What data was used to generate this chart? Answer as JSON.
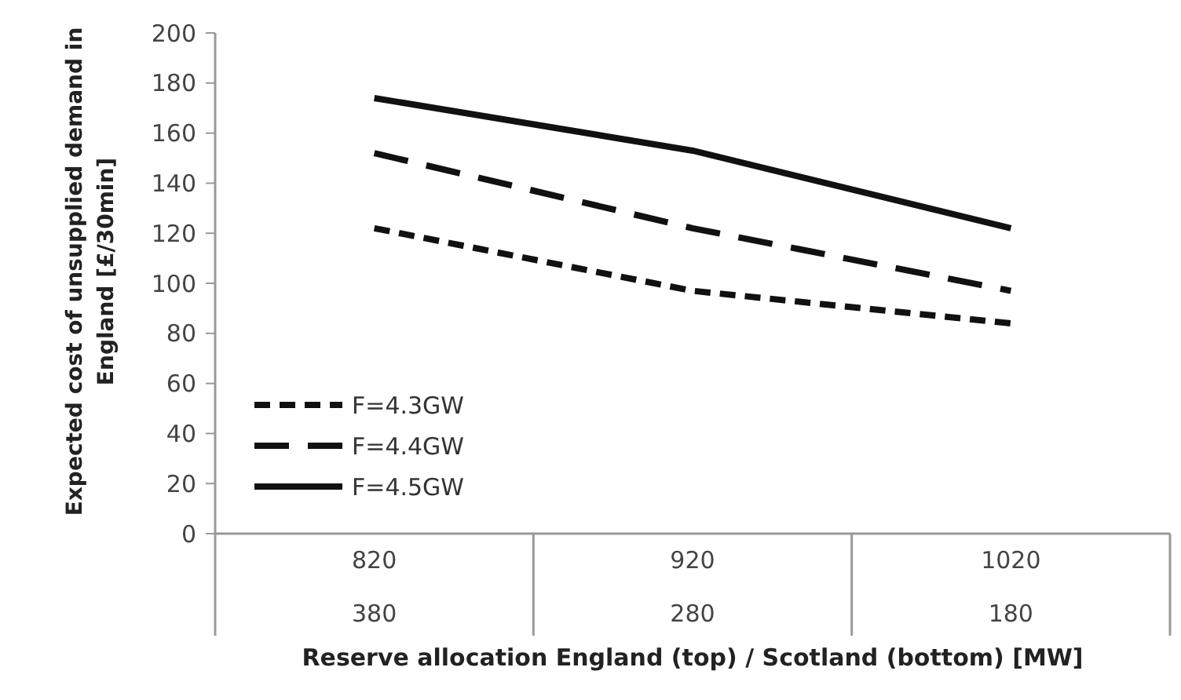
{
  "chart_data": {
    "type": "line",
    "xlabel": "Reserve allocation England (top) / Scotland (bottom) [MW]",
    "ylabel": "Expected cost of unsupplied demand in England [£/30min]",
    "categories": [
      "820\n380",
      "920\n280",
      "1020\n180"
    ],
    "ylim": [
      0,
      200
    ],
    "yticks": [
      0,
      20,
      40,
      60,
      80,
      100,
      120,
      140,
      160,
      180,
      200
    ],
    "grid": false,
    "legend": "bottom left",
    "marker": "none",
    "series": [
      {
        "name": "F=4.3GW",
        "color": "#111111",
        "line_style": "dotted",
        "values": [
          122,
          97,
          84
        ]
      },
      {
        "name": "F=4.4GW",
        "color": "#111111",
        "line_style": "dashed",
        "values": [
          152,
          122,
          97
        ]
      },
      {
        "name": "F=4.5GW",
        "color": "#111111",
        "line_style": "solid",
        "values": [
          174,
          153,
          122
        ]
      }
    ]
  }
}
